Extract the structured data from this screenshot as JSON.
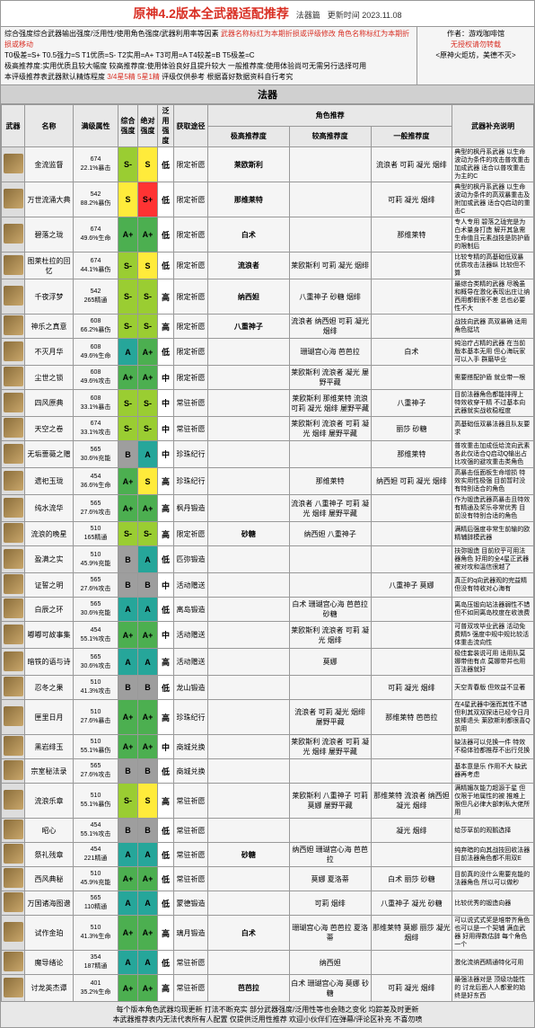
{
  "title": "原神4.2版本全武器适配推荐",
  "title_tag": "法器篇",
  "title_update": "更新时间 2023.11.08",
  "info_lines": [
    "综合强度综合武器输出强度/泛用性/使用角色强度/武器利用率等因素",
    "T0极差=S+ T0.5强力=S T1优质=S- T2实用=A+ T3可用=A T4较差=B T5极差=C",
    "极高推荐度:实用优质且较大幅度 较高推荐度:使用体验良好且提升较大 一般推荐度:使用体验尚可无需另行选择可用",
    "本评级推荐表武器默认精炼程度"
  ],
  "info_red1": "武器名称标红为本期折损或评级修改 角色名称标红为本期折损或移动",
  "info_red2": "3/4星5精 5星1精",
  "info_red3": "评级仅供参考 根据喜好数据资料自行考究",
  "author_label": "作者：游戏咖啡馆",
  "author_note1": "无授权请勿转载",
  "author_note2": "<原神火炬坊，美德不灭>",
  "section": "法器",
  "headers": {
    "icon": "武器",
    "name": "名称",
    "stat": "满级属性",
    "g1": "综合强度",
    "g2": "绝对强度",
    "g3": "泛用强度",
    "path": "获取途径",
    "rec_group": "角色推荐",
    "r1": "极高推荐度",
    "r2": "较高推荐度",
    "r3": "一般推荐度",
    "note": "武器补充说明"
  },
  "colors": {
    "Sp": "#ff3333",
    "S": "#ffeb3b",
    "Sm": "#9acd32",
    "Ap": "#4caf50",
    "A": "#26a69a",
    "Am": "#2e7d32",
    "B": "#9e9e9e",
    "white": "#ffffff"
  },
  "rows": [
    {
      "name": "金流监督",
      "s1": "674",
      "s2": "22.1%暴击",
      "g": [
        "S-",
        "S",
        "低"
      ],
      "gc": [
        "Sm",
        "S",
        "white"
      ],
      "path": "限定祈愿",
      "r1": "莱欧斯利",
      "r2": "",
      "r3": "流浪者 可莉 凝光 烟绯",
      "note": "典型的枫丹系武器 以生命波动为条件的攻击普攻重击加成武器 适合以普攻重击为主的C"
    },
    {
      "name": "万世流涌大典",
      "s1": "542",
      "s2": "88.2%暴伤",
      "g": [
        "S",
        "S+",
        "低"
      ],
      "gc": [
        "S",
        "Sp",
        "white"
      ],
      "path": "限定祈愿",
      "r1": "那维莱特",
      "r2": "",
      "r3": "可莉 凝光 烟绯",
      "note": "典型的枫丹系武器 以生命波动为条件的高双暴重击及附加或武器 适合Q启动的重击C"
    },
    {
      "name": "碧落之珑",
      "s1": "674",
      "s2": "49.6%生命",
      "g": [
        "A+",
        "A+",
        "低"
      ],
      "gc": [
        "Ap",
        "Ap",
        "white"
      ],
      "path": "限定祈愿",
      "r1": "白术",
      "r2": "",
      "r3": "那维莱特",
      "note": "专人专用 碧落之珑完是为白术量身打造 解开其急需生命值且元素战技是防护盾的限制后"
    },
    {
      "name": "图莱杜拉的回忆",
      "s1": "674",
      "s2": "44.1%暴伤",
      "g": [
        "S-",
        "S",
        "低"
      ],
      "gc": [
        "Sm",
        "S",
        "white"
      ],
      "path": "限定祈愿",
      "r1": "流浪者",
      "r2": "莱欧斯利 可莉 凝光 烟绯",
      "r3": "",
      "note": "比较专精的高基础低双暴 优质攻击法器纵 比较但不算"
    },
    {
      "name": "千夜浮梦",
      "s1": "542",
      "s2": "265精通",
      "g": [
        "S-",
        "S-",
        "高"
      ],
      "gc": [
        "Sm",
        "Sm",
        "white"
      ],
      "path": "限定祈愿",
      "r1": "纳西妲",
      "r2": "八重神子 砂糖 烟绯",
      "r3": "",
      "note": "最综合类精的武器 尽晚虽和概导在激化表现出庄让纳西用都假很不差 总也必要性不大"
    },
    {
      "name": "神乐之真意",
      "s1": "608",
      "s2": "66.2%暴伤",
      "g": [
        "S-",
        "S-",
        "高"
      ],
      "gc": [
        "Sm",
        "Sm",
        "white"
      ],
      "path": "限定祈愿",
      "r1": "八重神子",
      "r2": "流浪者 纳西妲 可莉 凝光 烟绯",
      "r3": "",
      "note": "战技向武器 高双暴确 适用角色挺坑"
    },
    {
      "name": "不灭月华",
      "s1": "608",
      "s2": "49.6%生命",
      "g": [
        "A",
        "A+",
        "低"
      ],
      "gc": [
        "A",
        "Ap",
        "white"
      ],
      "path": "限定祈愿",
      "r1": "",
      "r2": "珊瑚宫心海 芭芭拉",
      "r3": "白术",
      "note": "纯治疗占精的武器 在当前版本基本无用 但心海玩家可以入手 群磨毕业"
    },
    {
      "name": "尘世之锁",
      "s1": "608",
      "s2": "49.6%攻击",
      "g": [
        "A+",
        "A+",
        "中"
      ],
      "gc": [
        "Ap",
        "Ap",
        "white"
      ],
      "path": "限定祈愿",
      "r1": "",
      "r2": "莱欧斯利 流浪者 凝光 屡野平藏",
      "r3": "",
      "note": "需要搭配护盾 就业带一根"
    },
    {
      "name": "四风原典",
      "s1": "608",
      "s2": "33.1%暴击",
      "g": [
        "S-",
        "S-",
        "中"
      ],
      "gc": [
        "Sm",
        "Sm",
        "white"
      ],
      "path": "常驻祈愿",
      "r1": "",
      "r2": "莱欧斯利 那维莱特 流浪 可莉 凝光 烟绯 屡野平藏",
      "r3": "八重神子",
      "note": "目前法器角色都能排得上 特效收穿干精 不过基本向武器就实战收稳程度"
    },
    {
      "name": "天空之卷",
      "s1": "674",
      "s2": "33.1%攻击",
      "g": [
        "S-",
        "S-",
        "中"
      ],
      "gc": [
        "Sm",
        "Sm",
        "white"
      ],
      "path": "常驻祈愿",
      "r1": "",
      "r2": "莱欧斯利 流浪者 可莉 凝光 烟绯 屡野平藏",
      "r3": "丽莎 砂糖",
      "note": "高基础低双暴法器且队友要求"
    },
    {
      "name": "无垢蔷薇之赠",
      "s1": "565",
      "s2": "30.6%充能",
      "g": [
        "B",
        "A",
        "中"
      ],
      "gc": [
        "B",
        "A",
        "white"
      ],
      "path": "珍珠纪行",
      "r1": "",
      "r2": "",
      "r3": "那维莱特",
      "note": "普攻重击加成低给流向武素 各此仅适合Q启动Q输出占比攻强的避攻重击类角色"
    },
    {
      "name": "遗祀玉珑",
      "s1": "454",
      "s2": "36.6%生命",
      "g": [
        "A+",
        "S",
        "高"
      ],
      "gc": [
        "Ap",
        "S",
        "white"
      ],
      "path": "珍珠纪行",
      "r1": "",
      "r2": "那维莱特",
      "r3": "纳西妲 可莉 凝光 烟绯",
      "note": "高暴击低面板生命增损 特效实用性极强 目前暂时没有特别适合的角色"
    },
    {
      "name": "纯水流华",
      "s1": "565",
      "s2": "27.6%攻击",
      "g": [
        "A+",
        "A+",
        "高"
      ],
      "gc": [
        "Ap",
        "Ap",
        "white"
      ],
      "path": "枫丹锻造",
      "r1": "",
      "r2": "流浪者 八重神子 可莉 凝光 烟绯 屡野平藏",
      "r3": "",
      "note": "作为锻造武器高暴击且特效有精通及奖乐非常优秀 目前没有特别合适的角色"
    },
    {
      "name": "流浪的晚星",
      "s1": "510",
      "s2": "165精通",
      "g": [
        "S-",
        "S-",
        "高"
      ],
      "gc": [
        "Sm",
        "Sm",
        "white"
      ],
      "path": "限定祈愿",
      "r1": "砂糖",
      "r2": "纳西妲 八重神子",
      "r3": "",
      "note": "满精后强度非常生前输的欧精辅辞模武器"
    },
    {
      "name": "盈满之实",
      "s1": "510",
      "s2": "45.9%充能",
      "g": [
        "B",
        "A",
        "低"
      ],
      "gc": [
        "B",
        "A",
        "white"
      ],
      "path": "匹弥锻造",
      "r1": "",
      "r2": "",
      "r3": "",
      "note": "扶弥锻造 目前欣乎可用法器角色 好用的全4星正武器被对攻和溫信很越了"
    },
    {
      "name": "证誓之明",
      "s1": "565",
      "s2": "27.6%攻击",
      "g": [
        "B",
        "B",
        "中"
      ],
      "gc": [
        "B",
        "B",
        "white"
      ],
      "path": "活动赠送",
      "r1": "",
      "r2": "",
      "r3": "八重神子 莫娜",
      "note": "真正的q向武器观的完益精 但没有特收对心海有"
    },
    {
      "name": "白辰之环",
      "s1": "565",
      "s2": "30.6%充能",
      "g": [
        "A",
        "A",
        "低"
      ],
      "gc": [
        "A",
        "A",
        "white"
      ],
      "path": "离岛锻造",
      "r1": "",
      "r2": "白术 珊瑚宫心海 芭芭拉 砂糖",
      "r3": "",
      "note": "离岛压锻向站法器弱性不错 但不如同离岛校度在收浪费"
    },
    {
      "name": "嘟嘟可故事集",
      "s1": "454",
      "s2": "55.1%攻击",
      "g": [
        "A+",
        "A+",
        "中"
      ],
      "gc": [
        "Ap",
        "Ap",
        "white"
      ],
      "path": "活动赠送",
      "r1": "",
      "r2": "莱欧斯利 流浪者 可莉 凝光 烟绯",
      "r3": "",
      "note": "可普双攻毕业武器 活动免费精5 强度中规中规比较活体重击流向性"
    },
    {
      "name": "暗铁的语与诗",
      "s1": "565",
      "s2": "30.6%攻击",
      "g": [
        "A",
        "A",
        "高"
      ],
      "gc": [
        "A",
        "A",
        "white"
      ],
      "path": "活动赠送",
      "r1": "",
      "r2": "莫娜",
      "r3": "",
      "note": "极佳套装说可用 适用队莫娜带他有点 莫娜带并也用百法器就好"
    },
    {
      "name": "忍冬之果",
      "s1": "510",
      "s2": "41.3%攻击",
      "g": [
        "B",
        "B",
        "低"
      ],
      "gc": [
        "B",
        "B",
        "white"
      ],
      "path": "龙山锻造",
      "r1": "",
      "r2": "",
      "r3": "可莉 凝光 烟绯",
      "note": "天空青春版 但效益不显著"
    },
    {
      "name": "匣里日月",
      "s1": "510",
      "s2": "27.6%暴击",
      "g": [
        "A+",
        "A+",
        "高"
      ],
      "gc": [
        "Ap",
        "Ap",
        "white"
      ],
      "path": "珍珠纪行",
      "r1": "",
      "r2": "流浪者 可莉 凝光 烟绯 屡野平藏",
      "r3": "那维莱特 芭芭拉",
      "note": "在4星武器中强而其性不错 但利其双双探适已经令日月放棒退头 莱欧斯利都很喜Q前用"
    },
    {
      "name": "黑岩绯玉",
      "s1": "510",
      "s2": "55.1%暴伤",
      "g": [
        "A+",
        "A+",
        "中"
      ],
      "gc": [
        "Ap",
        "Ap",
        "white"
      ],
      "path": "商城兑换",
      "r1": "",
      "r2": "莱欧斯利 流浪者 可莉 凝光 烟绯 屡野平藏",
      "r3": "",
      "note": "缺法器可以兑换一件 特效不稳体验都推荐不出行兑换"
    },
    {
      "name": "宗室秘法录",
      "s1": "565",
      "s2": "27.6%攻击",
      "g": [
        "B",
        "B",
        "低"
      ],
      "gc": [
        "B",
        "B",
        "white"
      ],
      "path": "商城兑换",
      "r1": "",
      "r2": "",
      "r3": "",
      "note": "基本意是乐 作用不大 缺武器再考虑"
    },
    {
      "name": "流浪乐章",
      "s1": "510",
      "s2": "55.1%暴伤",
      "g": [
        "S-",
        "S",
        "高"
      ],
      "gc": [
        "Sm",
        "S",
        "white"
      ],
      "path": "常驻祈愿",
      "r1": "",
      "r2": "莱欧斯利 八重神子 可莉 莫娜 屡野平藏",
      "r3": "那维莱特 流浪者 纳西妲 凝光 烟绯",
      "note": "满精媚灰能力超源于星 但仅限于地属性的被 推难上限但凡必律大部刺私大佬所用"
    },
    {
      "name": "昭心",
      "s1": "454",
      "s2": "55.1%攻击",
      "g": [
        "B",
        "B",
        "低"
      ],
      "gc": [
        "B",
        "B",
        "white"
      ],
      "path": "常驻祈愿",
      "r1": "",
      "r2": "",
      "r3": "凝光 烟绯",
      "note": "给莎草前的观鹅选择"
    },
    {
      "name": "祭礼残章",
      "s1": "454",
      "s2": "221精通",
      "g": [
        "A",
        "A",
        "低"
      ],
      "gc": [
        "A",
        "A",
        "white"
      ],
      "path": "常驻祈愿",
      "r1": "砂糖",
      "r2": "纳西妲 珊瑚宫心海 芭芭拉",
      "r3": "",
      "note": "纯弃暗的向其战技回收法器 目前法器角色都不用双E"
    },
    {
      "name": "西风典秘",
      "s1": "510",
      "s2": "45.9%充能",
      "g": [
        "A+",
        "A+",
        "低"
      ],
      "gc": [
        "Ap",
        "Ap",
        "white"
      ],
      "path": "常驻祈愿",
      "r1": "",
      "r2": "莫娜 夏洛蒂",
      "r3": "白术 丽莎 砂糖",
      "note": "目前真的没什么需要充能的法器角色 所以可以做秒"
    },
    {
      "name": "万国诸海图谱",
      "s1": "565",
      "s2": "110精通",
      "g": [
        "A",
        "A",
        "低"
      ],
      "gc": [
        "A",
        "A",
        "white"
      ],
      "path": "蒙德锻造",
      "r1": "",
      "r2": "可莉 烟绯",
      "r3": "八重神子 凝光 砂糖",
      "note": "比较优秀的锻造向器"
    },
    {
      "name": "试作金珀",
      "s1": "510",
      "s2": "41.3%生命",
      "g": [
        "A+",
        "A+",
        "高"
      ],
      "gc": [
        "Ap",
        "Ap",
        "white"
      ],
      "path": "璃月锻造",
      "r1": "白术",
      "r2": "珊瑚宫心海 芭芭拉 夏洛蒂",
      "r3": "那维莱特 莫娜 丽莎 凝光 烟绯",
      "note": "可以说式式奖是堆带齐角色 也可以是一个契辅 满血武器 好用得数估辞 每个角色一个"
    },
    {
      "name": "魔导绪论",
      "s1": "354",
      "s2": "187精通",
      "g": [
        "A",
        "A",
        "低"
      ],
      "gc": [
        "A",
        "A",
        "white"
      ],
      "path": "常驻祈愿",
      "r1": "",
      "r2": "纳西妲",
      "r3": "",
      "note": "激化流纳西精通特化可用"
    },
    {
      "name": "讨龙英杰谭",
      "s1": "401",
      "s2": "35.2%生命",
      "g": [
        "A+",
        "A+",
        "高"
      ],
      "gc": [
        "Ap",
        "Ap",
        "white"
      ],
      "path": "常驻祈愿",
      "r1": "芭芭拉",
      "r2": "白术 珊瑚宫心海 莫娜 砂糖",
      "r3": "可莉 凝光 烟绯",
      "note": "最强法器对是 顶级功能性的 讨龙后面人人都爱的始终是好东西"
    }
  ],
  "footer1": "每个版本角色武器均现更新 打法不断充实 部分武器强度/泛用性等也会随之变化 均踪差及时更新",
  "footer2": "本武器推荐表内无法代表所有人配置 仅提供泛用性推荐 欢迎小伙伴们在弹幕/评论区补充 不喜勿喷"
}
